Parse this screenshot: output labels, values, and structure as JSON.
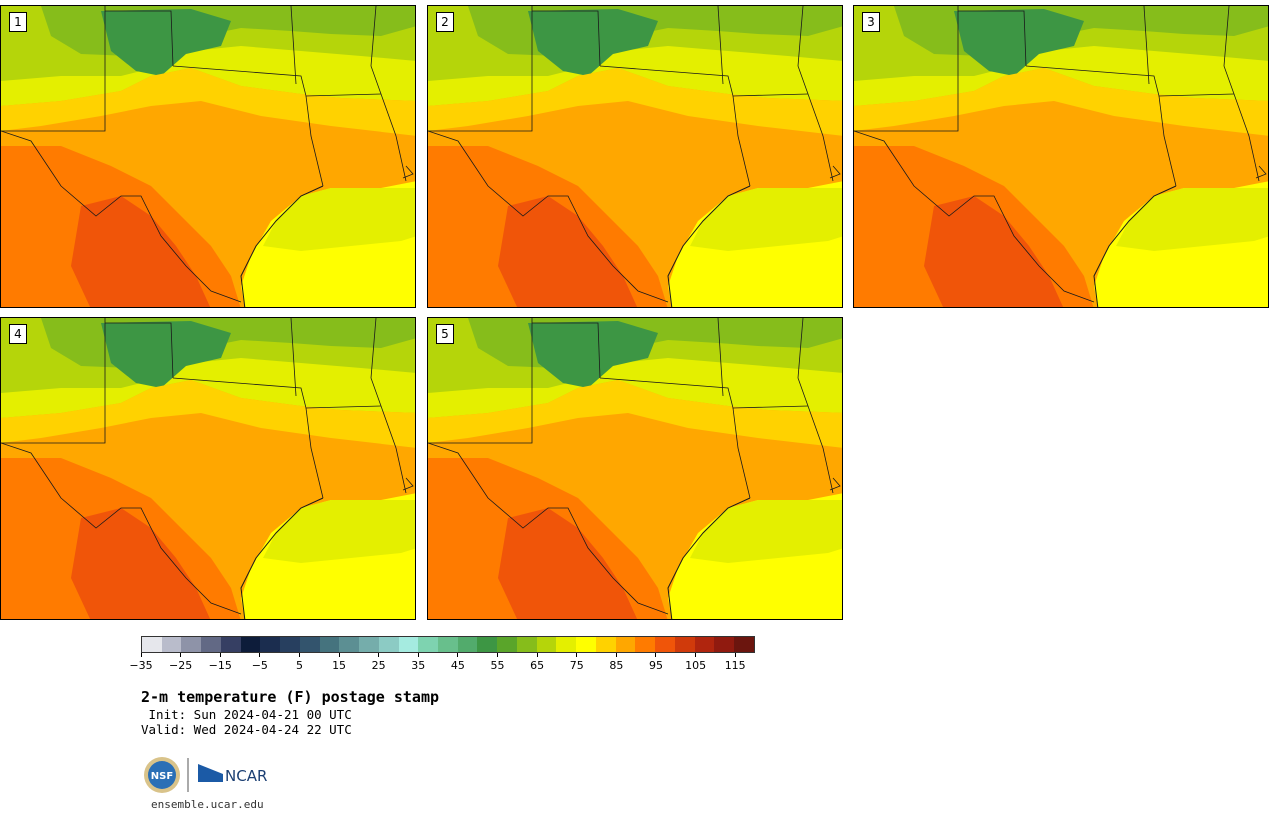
{
  "stamps": [
    {
      "label": "1"
    },
    {
      "label": "2"
    },
    {
      "label": "3"
    },
    {
      "label": "4"
    },
    {
      "label": "5"
    }
  ],
  "colorbar": {
    "colors": [
      "#e6e7ec",
      "#b9bccb",
      "#8e93a8",
      "#626985",
      "#363f63",
      "#0d1c3a",
      "#1b2d4f",
      "#273f5f",
      "#33546d",
      "#45737e",
      "#5c8f93",
      "#75adab",
      "#8ccbc4",
      "#a5ebe0",
      "#7ed3b0",
      "#68bf8c",
      "#52ab6c",
      "#3d9644",
      "#5aa52a",
      "#86bd1b",
      "#b5d50a",
      "#e4ef00",
      "#ffff00",
      "#ffd200",
      "#ffa700",
      "#ff7b00",
      "#f05509",
      "#d03a0b",
      "#b0250e",
      "#901a0f",
      "#6b150e"
    ],
    "tick_labels": [
      "−35",
      "−25",
      "−15",
      "−5",
      "5",
      "15",
      "25",
      "35",
      "45",
      "55",
      "65",
      "75",
      "85",
      "95",
      "105",
      "115"
    ]
  },
  "title": "2-m temperature (F) postage stamp",
  "init_line": " Init: Sun 2024-04-21 00 UTC",
  "valid_line": "Valid: Wed 2024-04-24 22 UTC",
  "logos": {
    "nsf": "NSF",
    "ncar": "NCAR"
  },
  "website": "ensemble.ucar.edu"
}
